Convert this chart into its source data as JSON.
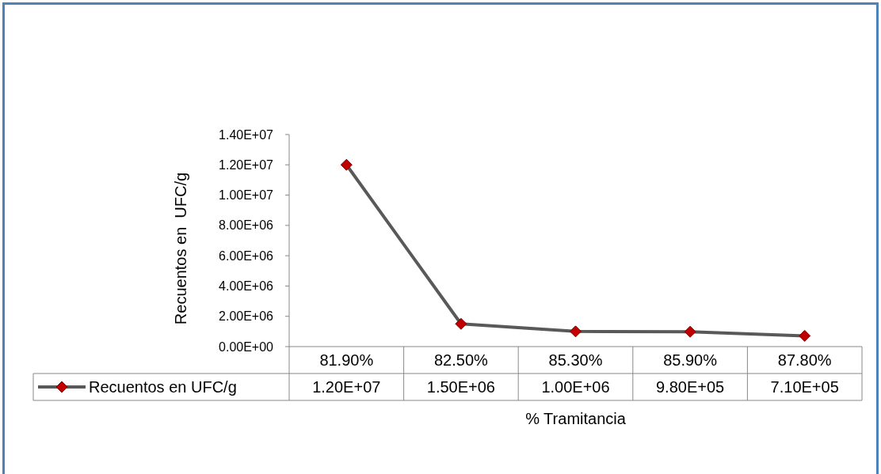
{
  "chart_data": {
    "type": "line",
    "xlabel": "% Tramitancia",
    "ylabel": "Recuentos en  UFC/g",
    "categories": [
      "81.90%",
      "82.50%",
      "85.30%",
      "85.90%",
      "87.80%"
    ],
    "series": [
      {
        "name": "Recuentos en UFC/g",
        "color": "#595959",
        "values": [
          12000000,
          1500000,
          1000000,
          980000,
          710000
        ],
        "value_labels": [
          "1.20E+07",
          "1.50E+06",
          "1.00E+06",
          "9.80E+05",
          "7.10E+05"
        ]
      }
    ],
    "ylim": [
      0,
      14000000
    ],
    "yticks": [
      {
        "value": 0,
        "label": "0.00E+00"
      },
      {
        "value": 2000000,
        "label": "2.00E+06"
      },
      {
        "value": 4000000,
        "label": "4.00E+06"
      },
      {
        "value": 6000000,
        "label": "6.00E+06"
      },
      {
        "value": 8000000,
        "label": "8.00E+06"
      },
      {
        "value": 10000000,
        "label": "1.00E+07"
      },
      {
        "value": 12000000,
        "label": "1.20E+07"
      },
      {
        "value": 14000000,
        "label": "1.40E+07"
      }
    ],
    "marker": "diamond",
    "line_style": "solid",
    "grid": false,
    "legend": "bottom"
  }
}
